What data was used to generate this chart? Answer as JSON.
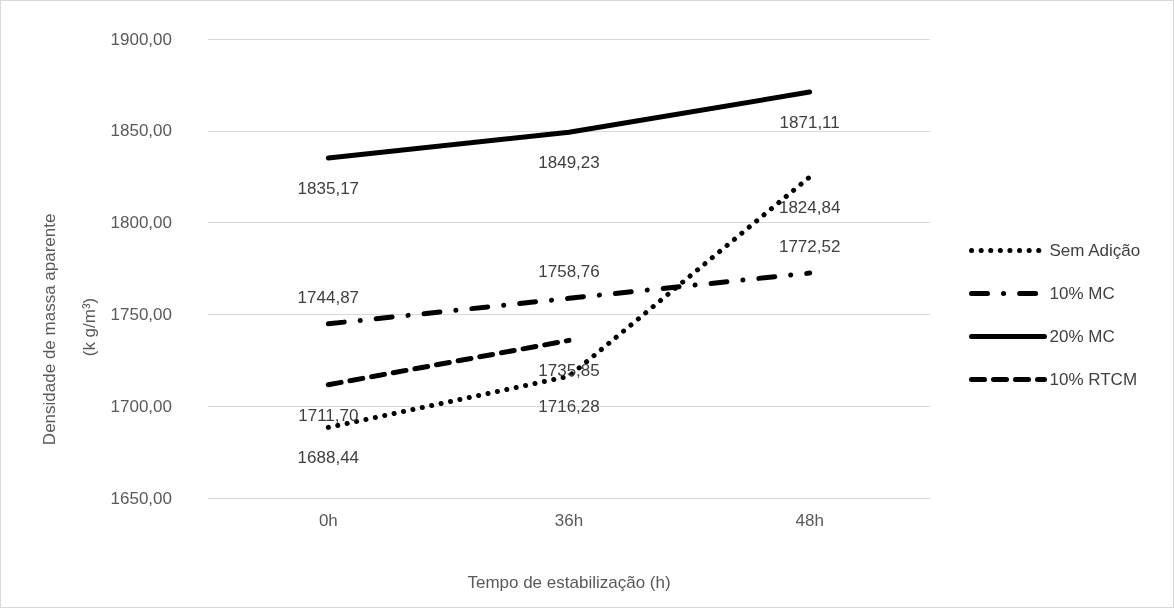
{
  "chart_data": {
    "type": "line",
    "xlabel": "Tempo de estabilização (h)",
    "ylabel": "Densidade de massa aparente (k g/m³)",
    "categories": [
      "0h",
      "36h",
      "48h"
    ],
    "ylim": [
      1650,
      1900
    ],
    "yticks": [
      {
        "value": 1650,
        "label": "1650,00"
      },
      {
        "value": 1700,
        "label": "1700,00"
      },
      {
        "value": 1750,
        "label": "1750,00"
      },
      {
        "value": 1800,
        "label": "1800,00"
      },
      {
        "value": 1850,
        "label": "1850,00"
      },
      {
        "value": 1900,
        "label": "1900,00"
      }
    ],
    "grid": "y",
    "legend": "right",
    "marker": "none",
    "series": [
      {
        "name": "Sem Adição",
        "color": "#000000",
        "line_style": "dotted",
        "values": [
          1688.44,
          1716.28,
          1824.84
        ],
        "value_labels": [
          "1688,44",
          "1716,28",
          "1824,84"
        ]
      },
      {
        "name": "10% MC",
        "color": "#000000",
        "line_style": "dashdot",
        "values": [
          1744.87,
          1758.76,
          1772.52
        ],
        "value_labels": [
          "1744,87",
          "1758,76",
          "1772,52"
        ]
      },
      {
        "name": "20% MC",
        "color": "#000000",
        "line_style": "solid",
        "values": [
          1835.17,
          1849.23,
          1871.11
        ],
        "value_labels": [
          "1835,17",
          "1849,23",
          "1871,11"
        ]
      },
      {
        "name": "10% RTCM",
        "color": "#000000",
        "line_style": "dashed",
        "values": [
          1711.7,
          1735.85,
          null
        ],
        "value_labels": [
          "1711,70",
          "1735,85",
          null
        ]
      }
    ]
  }
}
